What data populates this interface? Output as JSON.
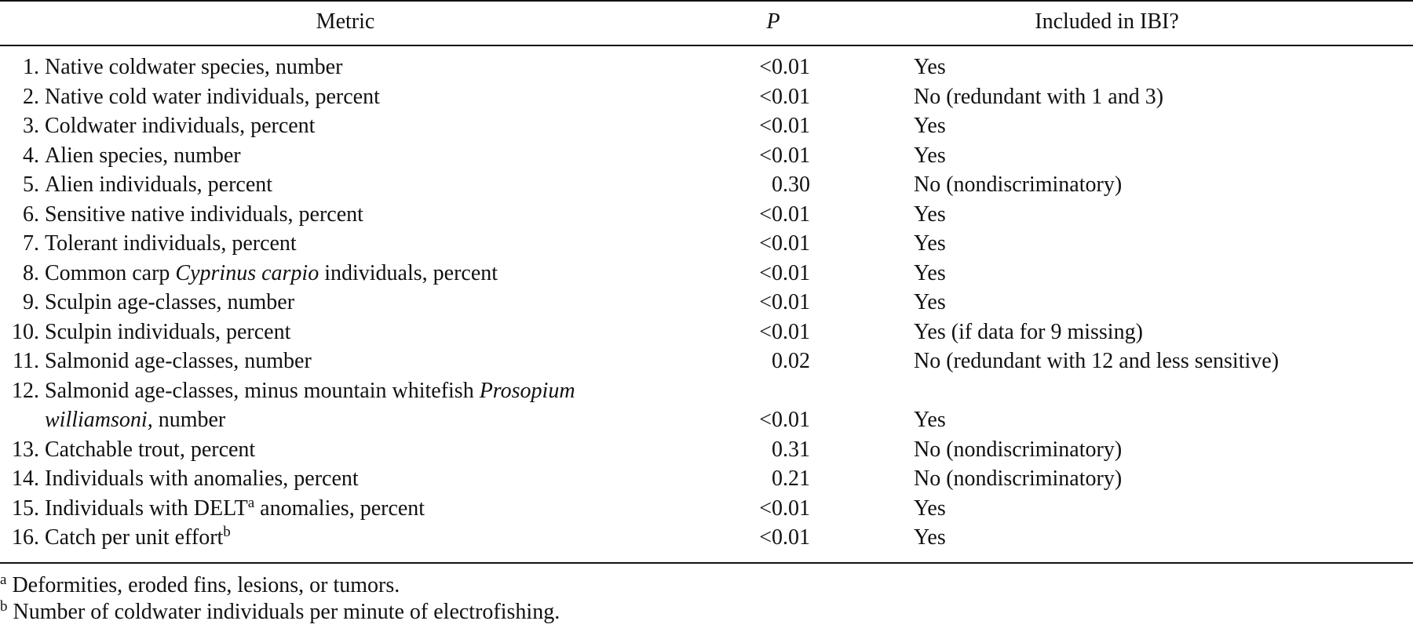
{
  "table": {
    "headers": {
      "metric": "Metric",
      "p": "P",
      "included": "Included in IBI?"
    },
    "rows": [
      {
        "num": "1.",
        "metric": "Native coldwater species, number",
        "p": "<0.01",
        "included": "Yes"
      },
      {
        "num": "2.",
        "metric": "Native cold water individuals, percent",
        "p": "<0.01",
        "included": "No (redundant with 1 and 3)"
      },
      {
        "num": "3.",
        "metric": "Coldwater individuals, percent",
        "p": "<0.01",
        "included": "Yes"
      },
      {
        "num": "4.",
        "metric": "Alien species, number",
        "p": "<0.01",
        "included": "Yes"
      },
      {
        "num": "5.",
        "metric": "Alien individuals, percent",
        "p": "0.30",
        "included": "No (nondiscriminatory)"
      },
      {
        "num": "6.",
        "metric": "Sensitive native individuals, percent",
        "p": "<0.01",
        "included": "Yes"
      },
      {
        "num": "7.",
        "metric": "Tolerant individuals, percent",
        "p": "<0.01",
        "included": "Yes"
      },
      {
        "num": "8.",
        "metric_pre": "Common carp ",
        "metric_italic": "Cyprinus carpio",
        "metric_post": " individuals, percent",
        "p": "<0.01",
        "included": "Yes"
      },
      {
        "num": "9.",
        "metric": "Sculpin age-classes, number",
        "p": "<0.01",
        "included": "Yes"
      },
      {
        "num": "10.",
        "metric": "Sculpin individuals, percent",
        "p": "<0.01",
        "included": "Yes (if data for 9 missing)"
      },
      {
        "num": "11.",
        "metric": "Salmonid age-classes, number",
        "p": "0.02",
        "included": "No (redundant with 12 and less sensitive)"
      },
      {
        "num": "12.",
        "metric_line1_pre": "Salmonid age-classes, minus mountain whitefish ",
        "metric_line1_italic": "Prosopium",
        "metric_line2_italic": "williamsoni,",
        "metric_line2_post": " number",
        "p": "<0.01",
        "included": "Yes"
      },
      {
        "num": "13.",
        "metric": "Catchable trout, percent",
        "p": "0.31",
        "included": "No (nondiscriminatory)"
      },
      {
        "num": "14.",
        "metric": "Individuals with anomalies, percent",
        "p": "0.21",
        "included": "No (nondiscriminatory)"
      },
      {
        "num": "15.",
        "metric_pre": "Individuals with DELT",
        "metric_sup": "a",
        "metric_post": " anomalies, percent",
        "p": "<0.01",
        "included": "Yes"
      },
      {
        "num": "16.",
        "metric_pre": "Catch per unit effort",
        "metric_sup": "b",
        "p": "<0.01",
        "included": "Yes"
      }
    ]
  },
  "footnotes": [
    {
      "mark": "a",
      "text": " Deformities, eroded fins, lesions, or tumors."
    },
    {
      "mark": "b",
      "text": " Number of coldwater individuals per minute of electrofishing."
    }
  ]
}
